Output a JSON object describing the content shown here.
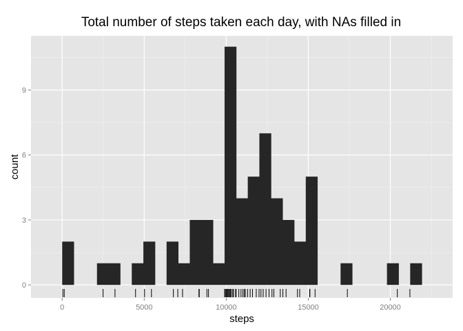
{
  "chart_data": {
    "type": "bar",
    "title": "Total number of steps taken each day, with NAs filled in",
    "xlabel": "steps",
    "ylabel": "count",
    "xlim": [
      -1900,
      23800
    ],
    "ylim": [
      -0.6,
      11.5
    ],
    "x_ticks": [
      0,
      5000,
      10000,
      15000,
      20000
    ],
    "x_tick_labels": [
      "0",
      "5000",
      "10000",
      "15000",
      "20000"
    ],
    "y_ticks": [
      0,
      3,
      6,
      9
    ],
    "y_tick_labels": [
      "0",
      "3",
      "6",
      "9"
    ],
    "grid": true,
    "bin_width": 707,
    "bins": [
      {
        "x": 0,
        "count": 2
      },
      {
        "x": 707,
        "count": 0
      },
      {
        "x": 1414,
        "count": 0
      },
      {
        "x": 2121,
        "count": 1
      },
      {
        "x": 2828,
        "count": 1
      },
      {
        "x": 3535,
        "count": 0
      },
      {
        "x": 4242,
        "count": 1
      },
      {
        "x": 4949,
        "count": 2
      },
      {
        "x": 5656,
        "count": 0
      },
      {
        "x": 6363,
        "count": 2
      },
      {
        "x": 7070,
        "count": 1
      },
      {
        "x": 7777,
        "count": 3
      },
      {
        "x": 8484,
        "count": 3
      },
      {
        "x": 9191,
        "count": 1
      },
      {
        "x": 9898,
        "count": 11
      },
      {
        "x": 10605,
        "count": 4
      },
      {
        "x": 11312,
        "count": 5
      },
      {
        "x": 12019,
        "count": 7
      },
      {
        "x": 12726,
        "count": 4
      },
      {
        "x": 13433,
        "count": 3
      },
      {
        "x": 14140,
        "count": 2
      },
      {
        "x": 14847,
        "count": 5
      },
      {
        "x": 15554,
        "count": 0
      },
      {
        "x": 16261,
        "count": 0
      },
      {
        "x": 16968,
        "count": 1
      },
      {
        "x": 17675,
        "count": 0
      },
      {
        "x": 18382,
        "count": 0
      },
      {
        "x": 19089,
        "count": 0
      },
      {
        "x": 19796,
        "count": 1
      },
      {
        "x": 20503,
        "count": 0
      },
      {
        "x": 21210,
        "count": 1
      }
    ],
    "rug": [
      41,
      126,
      2492,
      3219,
      4472,
      5018,
      5441,
      6778,
      7047,
      7336,
      8334,
      8355,
      8821,
      8918,
      9900,
      9950,
      10000,
      10050,
      10100,
      10150,
      10200,
      10250,
      10304,
      10395,
      10439,
      10571,
      10600,
      10766,
      10900,
      11015,
      11100,
      11162,
      11300,
      11458,
      11600,
      11829,
      12000,
      12116,
      12250,
      12426,
      12608,
      12787,
      12900,
      13294,
      13452,
      13646,
      14339,
      14478,
      15084,
      15098,
      15414,
      17382,
      20427,
      21194
    ]
  },
  "colors": {
    "panel_background": "#e5e5e5",
    "grid_major": "#ffffff",
    "grid_minor": "#f2f2f2",
    "bar_fill": "#262626",
    "rug": "#000000",
    "tick_label": "#7f7f7f"
  }
}
